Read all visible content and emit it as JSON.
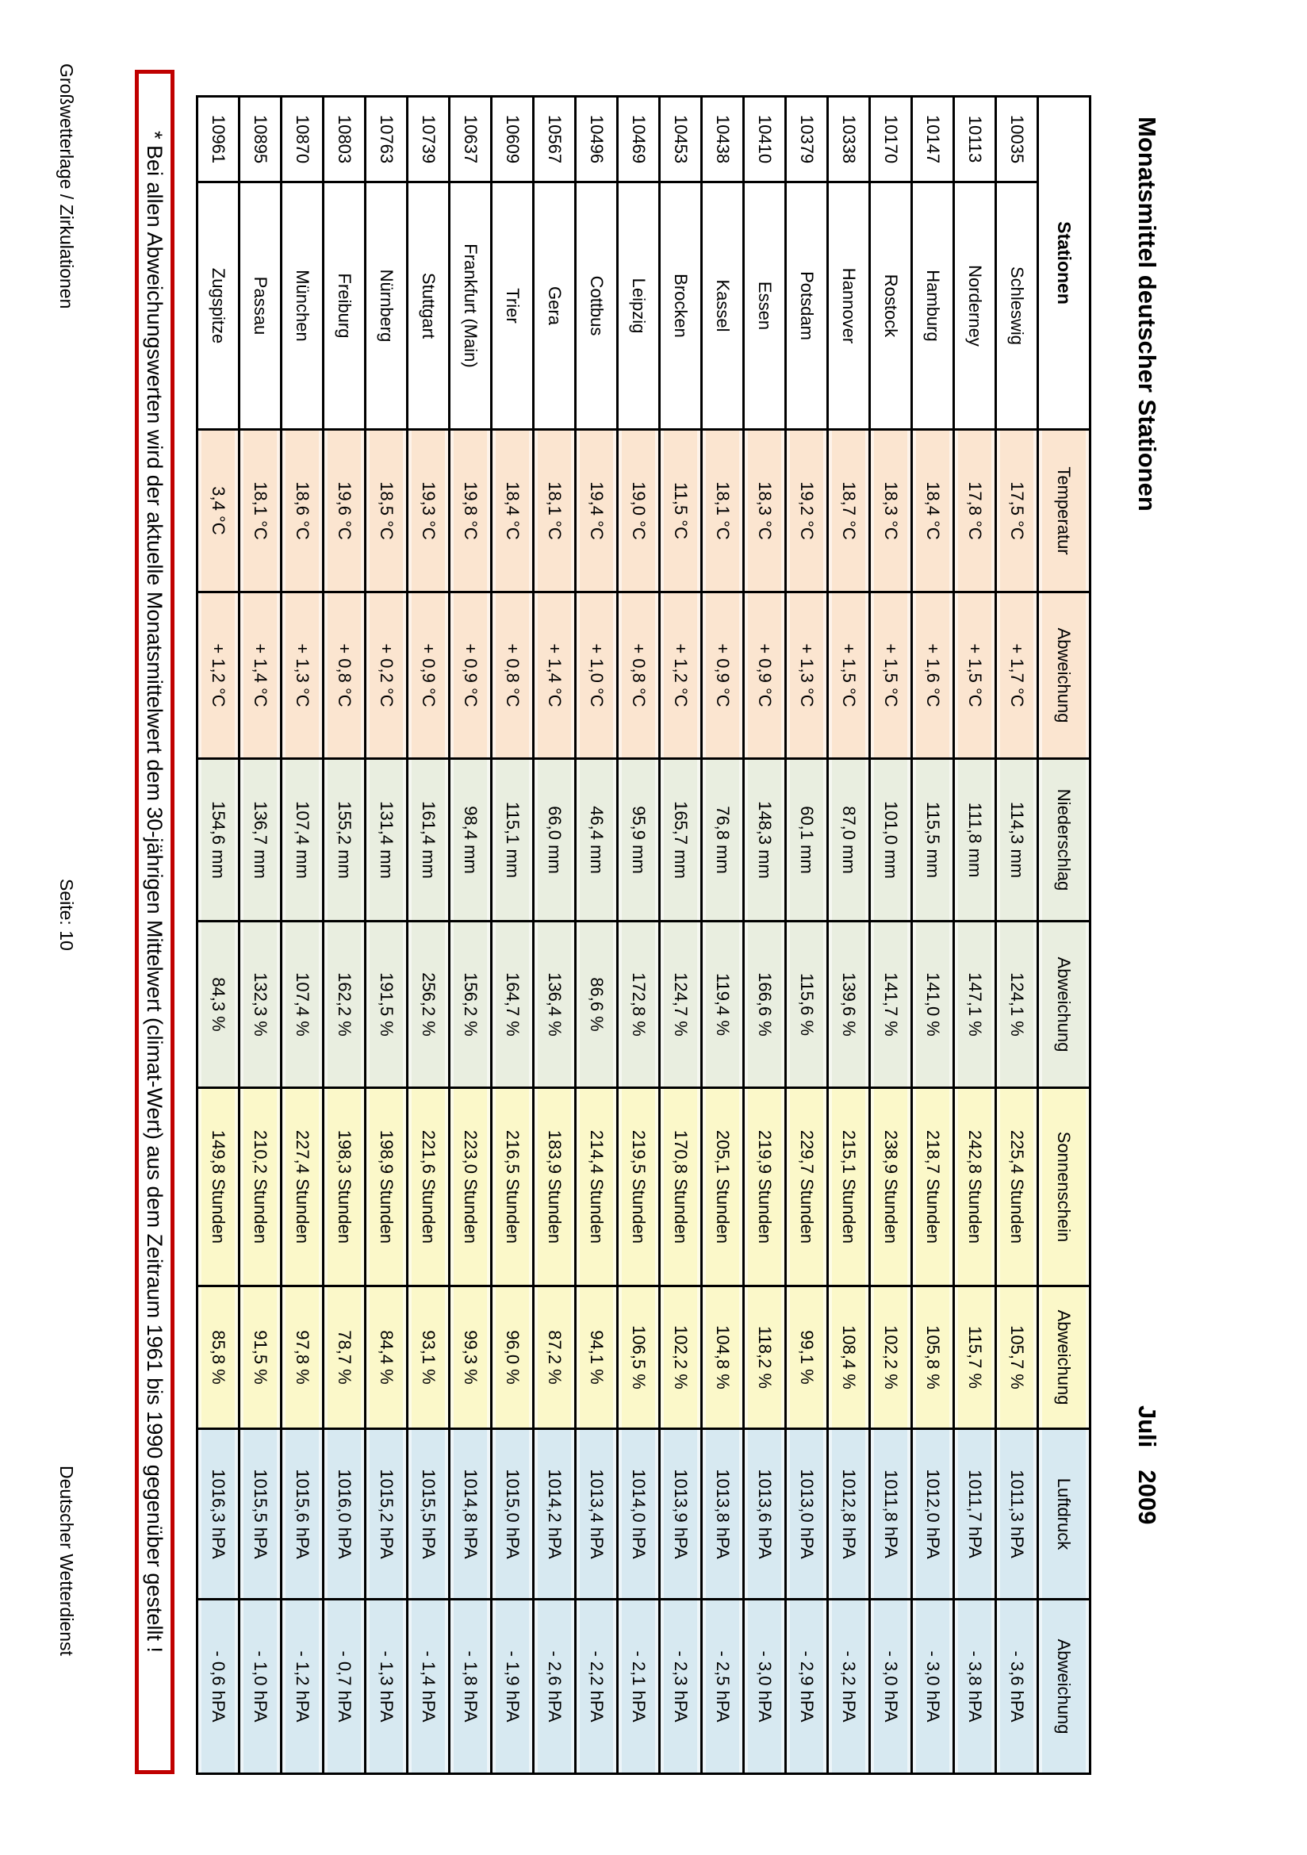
{
  "page": {
    "title": "Monatsmittel deutscher Stationen",
    "month": "Juli",
    "year": "2009"
  },
  "table": {
    "headers": [
      "Stationen",
      "Temperatur",
      "Abweichung",
      "Niederschlag",
      "Abweichung",
      "Sonnenschein",
      "Abweichung",
      "Luftdruck",
      "Abweichung"
    ]
  },
  "stations": [
    {
      "code": "10035",
      "name": "Schleswig",
      "temp": "17,5 °C",
      "temp_dev": "+ 1,7 °C",
      "precip": "114,3 mm",
      "precip_dev": "124,1 %",
      "sun": "225,4 Stunden",
      "sun_dev": "105,7 %",
      "pressure": "1011,3 hPA",
      "pressure_dev": "- 3,6 hPA"
    },
    {
      "code": "10113",
      "name": "Norderney",
      "temp": "17,8 °C",
      "temp_dev": "+ 1,5 °C",
      "precip": "111,8 mm",
      "precip_dev": "147,1 %",
      "sun": "242,8 Stunden",
      "sun_dev": "115,7 %",
      "pressure": "1011,7 hPA",
      "pressure_dev": "- 3,8 hPA"
    },
    {
      "code": "10147",
      "name": "Hamburg",
      "temp": "18,4 °C",
      "temp_dev": "+ 1,6 °C",
      "precip": "115,5 mm",
      "precip_dev": "141,0 %",
      "sun": "218,7 Stunden",
      "sun_dev": "105,8 %",
      "pressure": "1012,0 hPA",
      "pressure_dev": "- 3,0 hPA"
    },
    {
      "code": "10170",
      "name": "Rostock",
      "temp": "18,3 °C",
      "temp_dev": "+ 1,5 °C",
      "precip": "101,0 mm",
      "precip_dev": "141,7 %",
      "sun": "238,9 Stunden",
      "sun_dev": "102,2 %",
      "pressure": "1011,8 hPA",
      "pressure_dev": "- 3,0 hPA"
    },
    {
      "code": "10338",
      "name": "Hannover",
      "temp": "18,7 °C",
      "temp_dev": "+ 1,5 °C",
      "precip": "87,0 mm",
      "precip_dev": "139,6 %",
      "sun": "215,1 Stunden",
      "sun_dev": "108,4 %",
      "pressure": "1012,8 hPA",
      "pressure_dev": "- 3,2 hPA"
    },
    {
      "code": "10379",
      "name": "Potsdam",
      "temp": "19,2 °C",
      "temp_dev": "+ 1,3 °C",
      "precip": "60,1 mm",
      "precip_dev": "115,6 %",
      "sun": "229,7 Stunden",
      "sun_dev": "99,1 %",
      "pressure": "1013,0 hPA",
      "pressure_dev": "- 2,9 hPA"
    },
    {
      "code": "10410",
      "name": "Essen",
      "temp": "18,3 °C",
      "temp_dev": "+ 0,9 °C",
      "precip": "148,3 mm",
      "precip_dev": "166,6 %",
      "sun": "219,9 Stunden",
      "sun_dev": "118,2 %",
      "pressure": "1013,6 hPA",
      "pressure_dev": "- 3,0 hPA"
    },
    {
      "code": "10438",
      "name": "Kassel",
      "temp": "18,1 °C",
      "temp_dev": "+ 0,9 °C",
      "precip": "76,8 mm",
      "precip_dev": "119,4 %",
      "sun": "205,1 Stunden",
      "sun_dev": "104,8 %",
      "pressure": "1013,8 hPA",
      "pressure_dev": "- 2,5 hPA"
    },
    {
      "code": "10453",
      "name": "Brocken",
      "temp": "11,5 °C",
      "temp_dev": "+ 1,2 °C",
      "precip": "165,7 mm",
      "precip_dev": "124,7 %",
      "sun": "170,8 Stunden",
      "sun_dev": "102,2 %",
      "pressure": "1013,9 hPA",
      "pressure_dev": "- 2,3 hPA"
    },
    {
      "code": "10469",
      "name": "Leipzig",
      "temp": "19,0 °C",
      "temp_dev": "+ 0,8 °C",
      "precip": "95,9 mm",
      "precip_dev": "172,8 %",
      "sun": "219,5 Stunden",
      "sun_dev": "106,5 %",
      "pressure": "1014,0 hPA",
      "pressure_dev": "- 2,1 hPA"
    },
    {
      "code": "10496",
      "name": "Cottbus",
      "temp": "19,4 °C",
      "temp_dev": "+ 1,0 °C",
      "precip": "46,4 mm",
      "precip_dev": "86,6 %",
      "sun": "214,4 Stunden",
      "sun_dev": "94,1 %",
      "pressure": "1013,4 hPA",
      "pressure_dev": "- 2,2 hPA"
    },
    {
      "code": "10567",
      "name": "Gera",
      "temp": "18,1 °C",
      "temp_dev": "+ 1,4 °C",
      "precip": "66,0 mm",
      "precip_dev": "136,4 %",
      "sun": "183,9 Stunden",
      "sun_dev": "87,2 %",
      "pressure": "1014,2 hPA",
      "pressure_dev": "- 2,6 hPA"
    },
    {
      "code": "10609",
      "name": "Trier",
      "temp": "18,4 °C",
      "temp_dev": "+ 0,8 °C",
      "precip": "115,1 mm",
      "precip_dev": "164,7 %",
      "sun": "216,5 Stunden",
      "sun_dev": "96,0 %",
      "pressure": "1015,0 hPA",
      "pressure_dev": "- 1,9 hPA"
    },
    {
      "code": "10637",
      "name": "Frankfurt (Main)",
      "temp": "19,8 °C",
      "temp_dev": "+ 0,9 °C",
      "precip": "98,4 mm",
      "precip_dev": "156,2 %",
      "sun": "223,0 Stunden",
      "sun_dev": "99,3 %",
      "pressure": "1014,8 hPA",
      "pressure_dev": "- 1,8 hPA"
    },
    {
      "code": "10739",
      "name": "Stuttgart",
      "temp": "19,3 °C",
      "temp_dev": "+ 0,9 °C",
      "precip": "161,4 mm",
      "precip_dev": "256,2 %",
      "sun": "221,6 Stunden",
      "sun_dev": "93,1 %",
      "pressure": "1015,5 hPA",
      "pressure_dev": "- 1,4 hPA"
    },
    {
      "code": "10763",
      "name": "Nürnberg",
      "temp": "18,5 °C",
      "temp_dev": "+ 0,2 °C",
      "precip": "131,4 mm",
      "precip_dev": "191,5 %",
      "sun": "198,9 Stunden",
      "sun_dev": "84,4 %",
      "pressure": "1015,2 hPA",
      "pressure_dev": "- 1,3 hPA"
    },
    {
      "code": "10803",
      "name": "Freiburg",
      "temp": "19,6 °C",
      "temp_dev": "+ 0,8 °C",
      "precip": "155,2 mm",
      "precip_dev": "162,2 %",
      "sun": "198,3 Stunden",
      "sun_dev": "78,7 %",
      "pressure": "1016,0 hPA",
      "pressure_dev": "- 0,7 hPA"
    },
    {
      "code": "10870",
      "name": "München",
      "temp": "18,6 °C",
      "temp_dev": "+ 1,3 °C",
      "precip": "107,4 mm",
      "precip_dev": "107,4 %",
      "sun": "227,4 Stunden",
      "sun_dev": "97,8 %",
      "pressure": "1015,6 hPA",
      "pressure_dev": "- 1,2 hPA"
    },
    {
      "code": "10895",
      "name": "Passau",
      "temp": "18,1 °C",
      "temp_dev": "+ 1,4 °C",
      "precip": "136,7 mm",
      "precip_dev": "132,3 %",
      "sun": "210,2 Stunden",
      "sun_dev": "91,5 %",
      "pressure": "1015,5 hPA",
      "pressure_dev": "- 1,0 hPA"
    },
    {
      "code": "10961",
      "name": "Zugspitze",
      "temp": "3,4 °C",
      "temp_dev": "+ 1,2 °C",
      "precip": "154,6 mm",
      "precip_dev": "84,3 %",
      "sun": "149,8 Stunden",
      "sun_dev": "85,8 %",
      "pressure": "1016,3 hPA",
      "pressure_dev": "- 0,6 hPA"
    }
  ],
  "footnote": "* Bei allen Abweichungswerten wird der aktuelle Monatsmittelwert dem 30-jährigen Mittelwert (climat-Wert) aus dem Zeitraum 1961 bis 1990 gegenüber gestellt !",
  "footer": {
    "left": "Großwetterlage / Zirkulationen",
    "center": "Seite: 10",
    "right": "Deutscher Wetterdienst"
  },
  "colors": {
    "temperature_band": "#fbe5d0",
    "precipitation_band": "#e9eee0",
    "sunshine_band": "#fbf8c9",
    "pressure_band": "#d7e9f1",
    "note_border": "#c00000"
  }
}
